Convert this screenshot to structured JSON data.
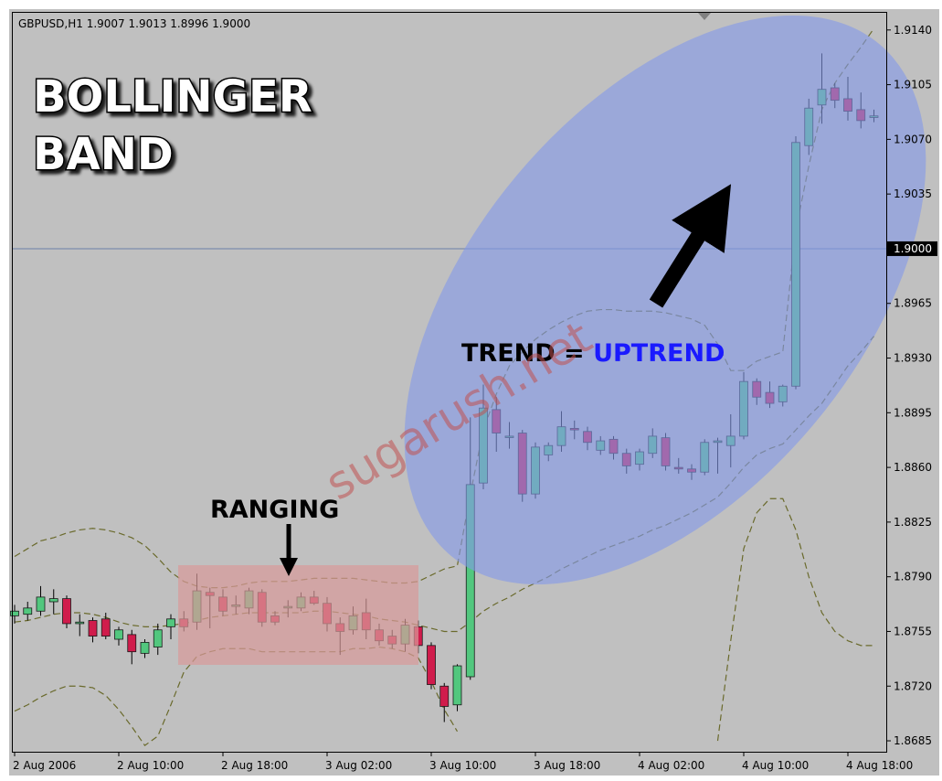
{
  "chart_data": {
    "type": "candlestick",
    "header": "GBPUSD,H1  1.9007 1.9013 1.8996 1.9000",
    "title": [
      "BOLLINGER",
      "BAND"
    ],
    "annotations": {
      "ranging": "RANGING",
      "trend": "TREND =",
      "uptrend": "UPTREND"
    },
    "watermark": "sugarush.net",
    "categories": [
      "2 Aug 2006",
      null,
      null,
      null,
      null,
      null,
      null,
      null,
      "2 Aug 10:00",
      null,
      null,
      null,
      null,
      null,
      null,
      null,
      "2 Aug 18:00",
      null,
      null,
      null,
      null,
      null,
      null,
      null,
      "3 Aug 02:00",
      null,
      null,
      null,
      null,
      null,
      null,
      null,
      "3 Aug 10:00",
      null,
      null,
      null,
      null,
      null,
      null,
      null,
      "3 Aug 18:00",
      null,
      null,
      null,
      null,
      null,
      null,
      null,
      "4 Aug 02:00",
      null,
      null,
      null,
      null,
      null,
      null,
      null,
      "4 Aug 10:00",
      null,
      null,
      null,
      null,
      null,
      null,
      null,
      "4 Aug 18:00",
      null,
      null
    ],
    "open": [
      1.8765,
      1.8766,
      1.8768,
      1.8774,
      1.8776,
      1.876,
      1.8762,
      1.8763,
      1.875,
      1.8753,
      1.8741,
      1.8745,
      1.8758,
      1.8763,
      1.8761,
      1.878,
      1.8777,
      1.8771,
      1.877,
      1.878,
      1.8765,
      1.877,
      1.877,
      1.8777,
      1.8773,
      1.876,
      1.8756,
      1.8767,
      1.8756,
      1.8752,
      1.8747,
      1.8758,
      1.8746,
      1.872,
      1.8708,
      1.8726,
      1.885,
      1.8897,
      1.888,
      1.8882,
      1.8843,
      1.8868,
      1.8874,
      1.8885,
      1.8883,
      1.8871,
      1.8878,
      1.8869,
      1.8862,
      1.8869,
      1.8879,
      1.886,
      1.8859,
      1.8857,
      1.8876,
      1.8874,
      1.888,
      1.8915,
      1.8908,
      1.8902,
      1.8912,
      1.9066,
      1.9092,
      1.9103,
      1.9096,
      1.9089,
      1.9084
    ],
    "high": [
      1.8772,
      1.8774,
      1.8784,
      1.8782,
      1.8778,
      1.8766,
      1.8764,
      1.8767,
      1.8758,
      1.8756,
      1.875,
      1.876,
      1.8766,
      1.8768,
      1.8792,
      1.8783,
      1.8782,
      1.8778,
      1.8783,
      1.8782,
      1.8768,
      1.8775,
      1.878,
      1.8781,
      1.8777,
      1.8764,
      1.8771,
      1.8776,
      1.876,
      1.8756,
      1.8763,
      1.8762,
      1.8748,
      1.8722,
      1.8734,
      1.8892,
      1.8913,
      1.8905,
      1.8889,
      1.8884,
      1.8876,
      1.8876,
      1.8896,
      1.889,
      1.8886,
      1.888,
      1.888,
      1.8872,
      1.8872,
      1.8885,
      1.8882,
      1.8866,
      1.8862,
      1.8878,
      1.8879,
      1.8894,
      1.8921,
      1.8917,
      1.8915,
      1.8913,
      1.9072,
      1.9096,
      1.9125,
      1.9106,
      1.911,
      1.91,
      1.9089
    ],
    "low": [
      1.876,
      1.8762,
      1.8765,
      1.8766,
      1.8757,
      1.8752,
      1.8748,
      1.875,
      1.8746,
      1.8734,
      1.8738,
      1.874,
      1.875,
      1.8755,
      1.8756,
      1.8757,
      1.8765,
      1.8766,
      1.8766,
      1.8758,
      1.8759,
      1.8764,
      1.8768,
      1.8772,
      1.8755,
      1.874,
      1.8753,
      1.875,
      1.8746,
      1.8744,
      1.8742,
      1.8741,
      1.8718,
      1.8697,
      1.8704,
      1.8724,
      1.8846,
      1.887,
      1.8872,
      1.8838,
      1.884,
      1.8864,
      1.887,
      1.8878,
      1.8871,
      1.8868,
      1.8865,
      1.8856,
      1.8858,
      1.8866,
      1.8858,
      1.8856,
      1.8852,
      1.8855,
      1.8856,
      1.886,
      1.8878,
      1.89,
      1.8898,
      1.8899,
      1.891,
      1.906,
      1.908,
      1.909,
      1.9082,
      1.9077,
      1.9081
    ],
    "close": [
      1.8768,
      1.877,
      1.8777,
      1.8776,
      1.876,
      1.8761,
      1.8752,
      1.8752,
      1.8756,
      1.8742,
      1.8748,
      1.8756,
      1.8763,
      1.8758,
      1.8781,
      1.8778,
      1.8768,
      1.8772,
      1.8781,
      1.8761,
      1.8761,
      1.8771,
      1.8777,
      1.8773,
      1.876,
      1.8755,
      1.8765,
      1.8756,
      1.8749,
      1.8747,
      1.8759,
      1.8746,
      1.8721,
      1.8707,
      1.8733,
      1.8849,
      1.8898,
      1.8882,
      1.888,
      1.8843,
      1.8873,
      1.8874,
      1.8886,
      1.8884,
      1.8876,
      1.8877,
      1.8869,
      1.8861,
      1.887,
      1.888,
      1.8861,
      1.8859,
      1.8857,
      1.8876,
      1.8877,
      1.888,
      1.8915,
      1.8905,
      1.8901,
      1.8912,
      1.9068,
      1.909,
      1.9102,
      1.9095,
      1.9088,
      1.9082,
      1.9085
    ],
    "up_color": "#52c77e",
    "down_color": "#d01c4c",
    "band_color": "#6a6a2c",
    "series": [
      {
        "values": [
          1.8803,
          1.8808,
          1.8813,
          1.8815,
          1.8818,
          1.882,
          1.8821,
          1.882,
          1.8818,
          1.8815,
          1.881,
          1.8802,
          1.8793,
          1.8787,
          1.8784,
          1.8783,
          1.8783,
          1.8784,
          1.8786,
          1.8787,
          1.8787,
          1.8787,
          1.8788,
          1.8789,
          1.8789,
          1.8789,
          1.8789,
          1.8788,
          1.8787,
          1.8786,
          1.8786,
          1.8787,
          1.8791,
          1.8795,
          1.8797,
          1.8843,
          1.8884,
          1.8907,
          1.8925,
          1.8934,
          1.8942,
          1.8948,
          1.8953,
          1.8957,
          1.896,
          1.8961,
          1.8961,
          1.896,
          1.896,
          1.896,
          1.8959,
          1.8957,
          1.8955,
          1.8951,
          1.8939,
          1.8922,
          1.8922,
          1.8928,
          1.8931,
          1.8934,
          1.9012,
          1.9053,
          1.9089,
          1.9106,
          1.9118,
          1.9129,
          1.9141
        ]
      },
      {
        "values": [
          1.8761,
          1.8762,
          1.8764,
          1.8766,
          1.8767,
          1.8767,
          1.8766,
          1.8764,
          1.8761,
          1.8759,
          1.8758,
          1.8758,
          1.8759,
          1.876,
          1.8762,
          1.8764,
          1.8765,
          1.8766,
          1.8767,
          1.8767,
          1.8767,
          1.8767,
          1.8767,
          1.8768,
          1.8768,
          1.8767,
          1.8766,
          1.8765,
          1.8763,
          1.8762,
          1.8761,
          1.8759,
          1.8757,
          1.8755,
          1.8755,
          1.8761,
          1.8768,
          1.8773,
          1.8777,
          1.8782,
          1.8786,
          1.879,
          1.8795,
          1.8799,
          1.8803,
          1.8807,
          1.881,
          1.8813,
          1.8816,
          1.882,
          1.8823,
          1.8827,
          1.8831,
          1.8836,
          1.8841,
          1.885,
          1.886,
          1.8868,
          1.8872,
          1.8875,
          1.8884,
          1.8893,
          1.8901,
          1.8913,
          1.8925,
          1.8934,
          1.8944
        ]
      },
      {
        "values": [
          1.8704,
          1.8708,
          1.8713,
          1.8717,
          1.872,
          1.872,
          1.8719,
          1.8714,
          1.8705,
          1.8694,
          1.8682,
          1.8688,
          1.8708,
          1.8729,
          1.8739,
          1.8742,
          1.8744,
          1.8744,
          1.8744,
          1.8742,
          1.8742,
          1.8742,
          1.8742,
          1.8742,
          1.8742,
          1.8742,
          1.8744,
          1.8744,
          1.8745,
          1.8744,
          1.8742,
          1.8738,
          1.8723,
          1.8705,
          1.8691,
          null,
          null,
          null,
          null,
          null,
          null,
          null,
          null,
          null,
          null,
          null,
          null,
          null,
          null,
          null,
          null,
          null,
          null,
          null,
          1.8685,
          1.8749,
          1.8808,
          1.8831,
          1.884,
          1.884,
          1.882,
          1.879,
          1.8767,
          1.8755,
          1.8749,
          1.8746,
          1.8746
        ]
      }
    ],
    "price_line": 1.9,
    "ylim": [
      1.8678,
      1.9151
    ],
    "yticks": [
      {
        "value": 1.914,
        "label": "1.9140"
      },
      1.9105,
      {
        "value": 1.907,
        "label": "1.9070"
      },
      1.9035,
      {
        "value": 1.9,
        "label": "1.9000"
      },
      1.8965,
      {
        "value": 1.893,
        "label": "1.8930"
      },
      1.8895,
      {
        "value": 1.886,
        "label": "1.8860"
      },
      1.8825,
      {
        "value": 1.879,
        "label": "1.8790"
      },
      1.8755,
      {
        "value": 1.872,
        "label": "1.8720"
      },
      1.8685
    ]
  }
}
